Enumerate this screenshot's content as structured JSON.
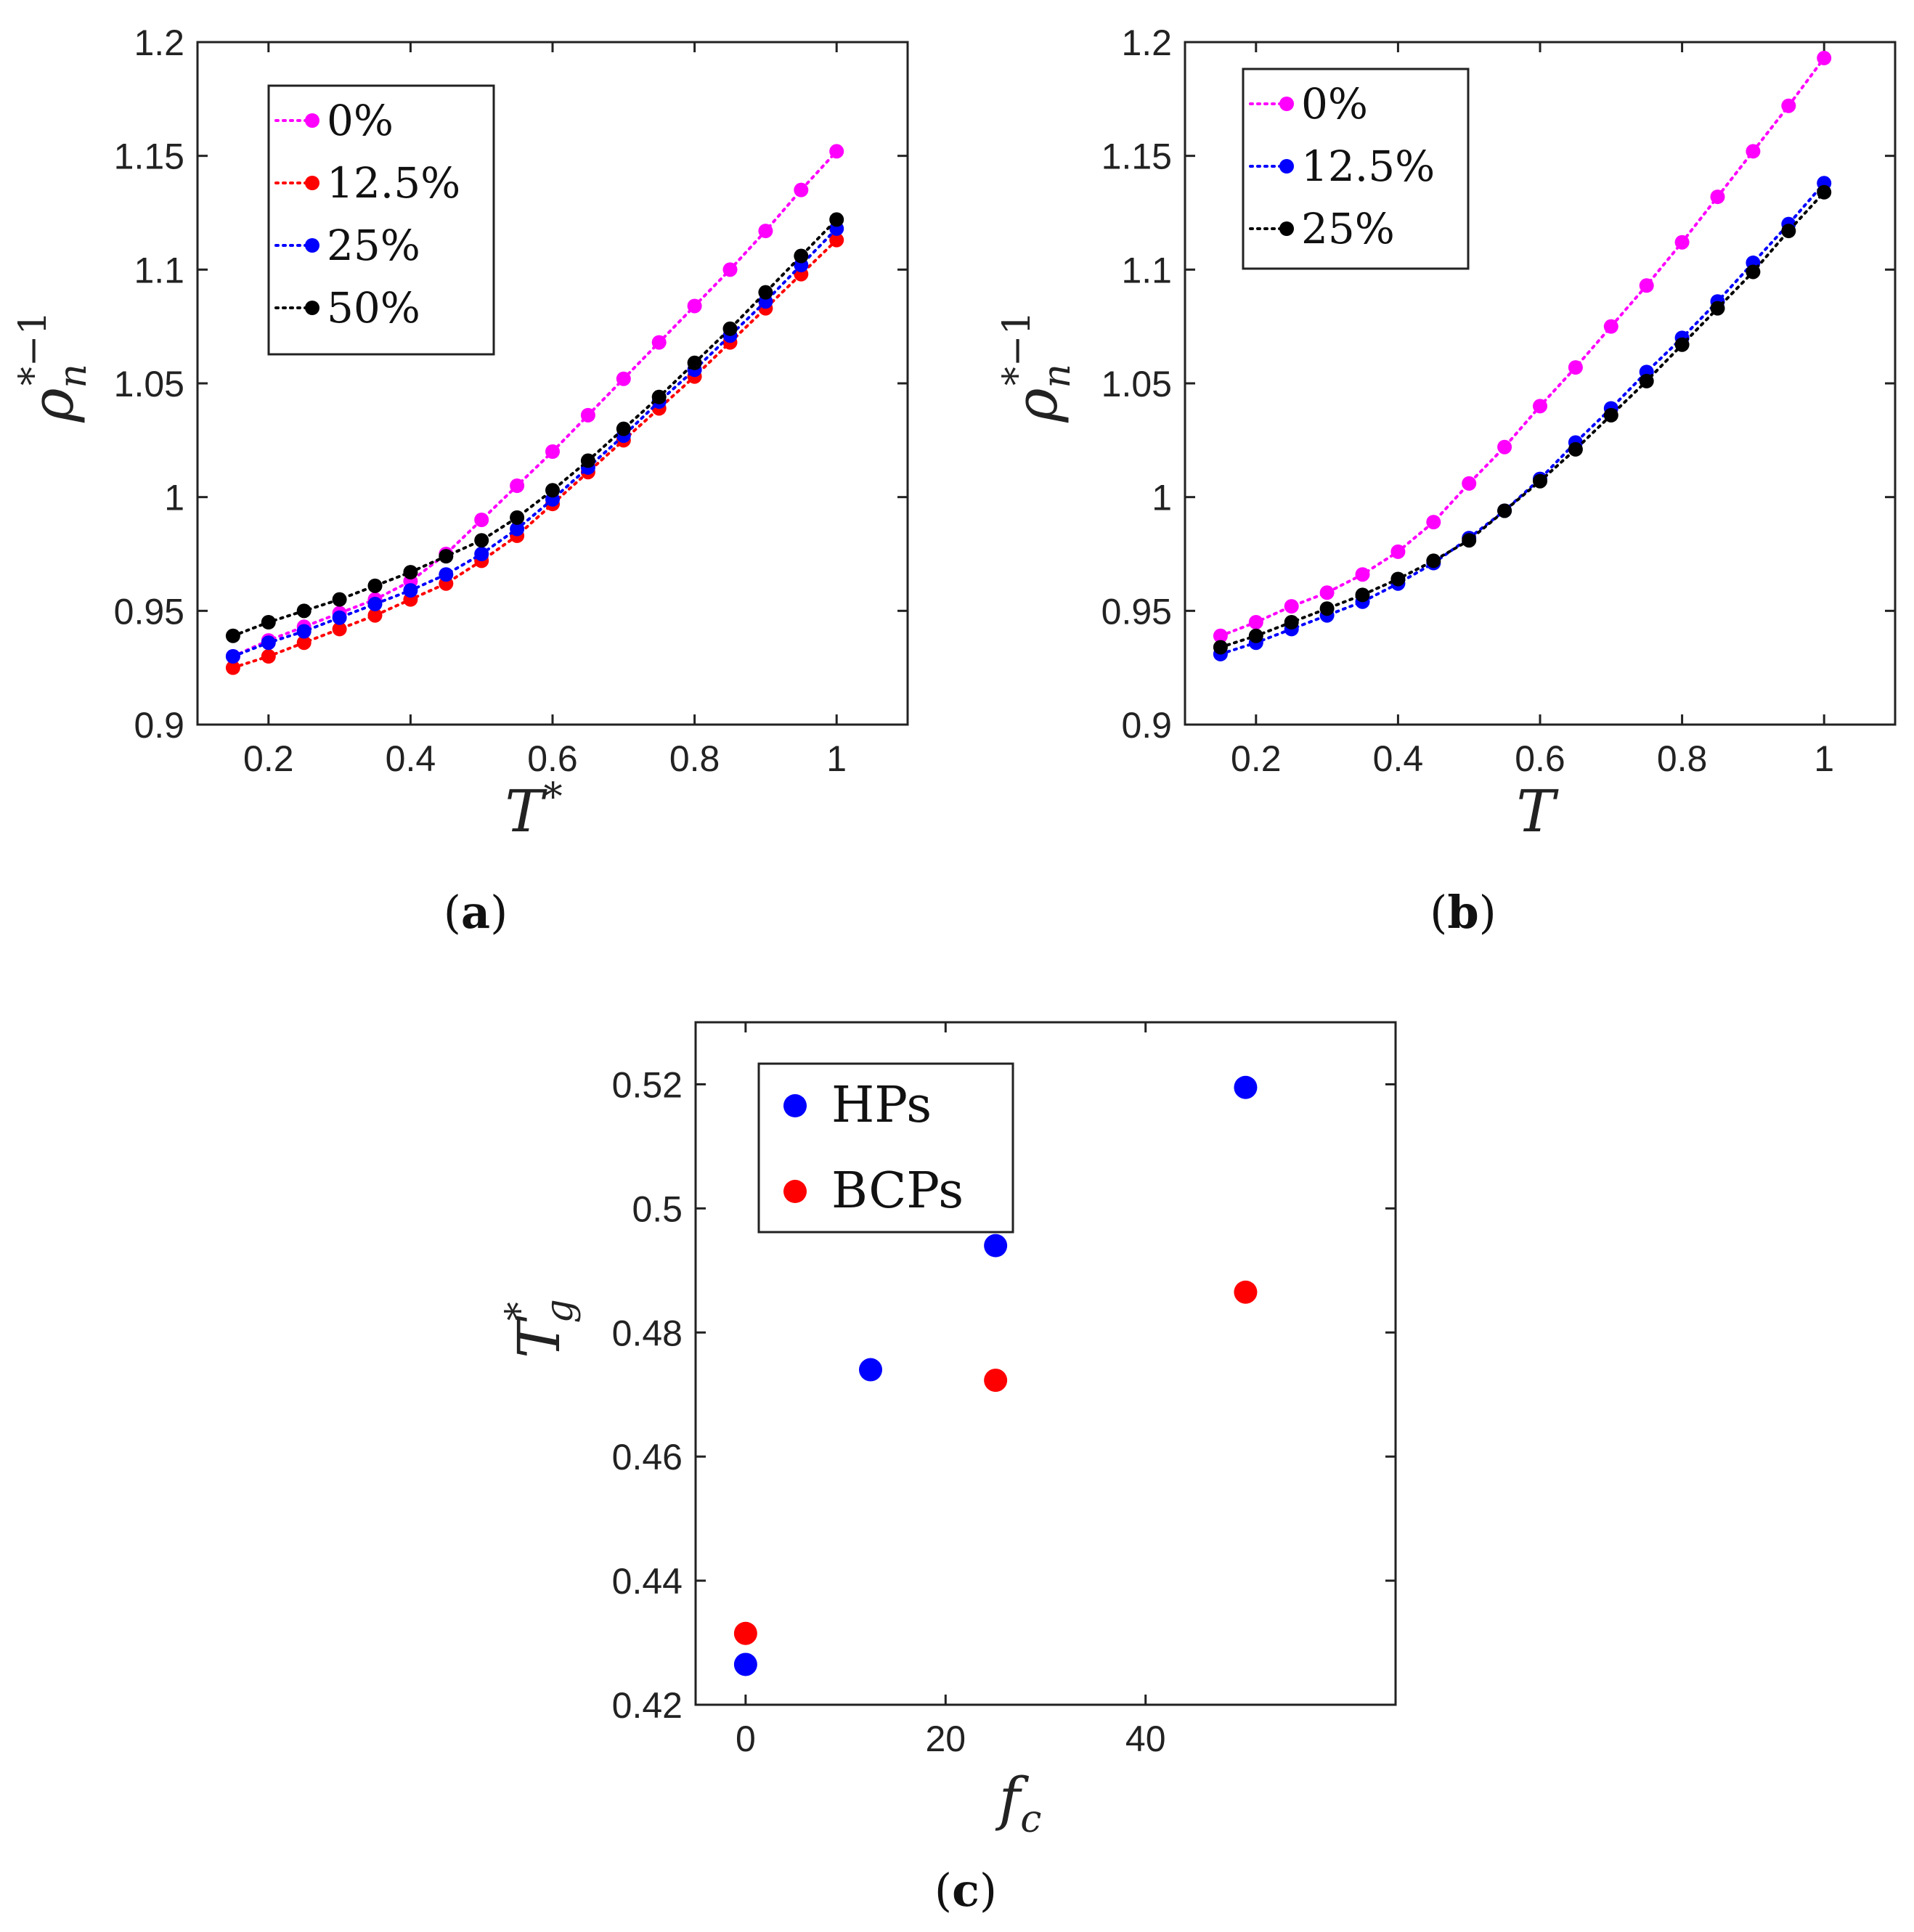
{
  "panels": [
    {
      "id": "a",
      "label": "a",
      "xlabel": "T",
      "xlabel_sup": "*",
      "ylabel": "ρ",
      "ylabel_sub": "n",
      "ylabel_sup": "*−1"
    },
    {
      "id": "b",
      "label": "b",
      "xlabel": "T",
      "xlabel_sup": "",
      "ylabel": "ρ",
      "ylabel_sub": "n",
      "ylabel_sup": "*−1"
    },
    {
      "id": "c",
      "label": "c",
      "xlabel": "f",
      "xlabel_sub": "c",
      "ylabel": "T",
      "ylabel_sub": "g",
      "ylabel_sup": "*"
    }
  ],
  "chart_data": [
    {
      "panel": "a",
      "type": "line",
      "marker": "dot",
      "linestyle": "dotted",
      "title": "",
      "xlabel": "T*",
      "ylabel": "ρn*−1",
      "xlim": [
        0.1,
        1.1
      ],
      "ylim": [
        0.9,
        1.2
      ],
      "xticks": [
        0.2,
        0.4,
        0.6,
        0.8,
        1
      ],
      "xtick_labels": [
        "0.2",
        "0.4",
        "0.6",
        "0.8",
        "1"
      ],
      "yticks": [
        0.9,
        0.95,
        1.0,
        1.05,
        1.1,
        1.15,
        1.2
      ],
      "ytick_labels": [
        "0.9",
        "0.95",
        "1",
        "1.05",
        "1.1",
        "1.15",
        "1.2"
      ],
      "legend_position": "top-left",
      "x": [
        0.15,
        0.2,
        0.25,
        0.3,
        0.35,
        0.4,
        0.45,
        0.5,
        0.55,
        0.6,
        0.65,
        0.7,
        0.75,
        0.8,
        0.85,
        0.9,
        0.95,
        1.0
      ],
      "series": [
        {
          "name": "0%",
          "color": "#ff00ff",
          "values": [
            0.93,
            0.937,
            0.943,
            0.949,
            0.955,
            0.963,
            0.975,
            0.99,
            1.005,
            1.02,
            1.036,
            1.052,
            1.068,
            1.084,
            1.1,
            1.117,
            1.135,
            1.152
          ]
        },
        {
          "name": "12.5%",
          "color": "#ff0000",
          "values": [
            0.925,
            0.93,
            0.936,
            0.942,
            0.948,
            0.955,
            0.962,
            0.972,
            0.983,
            0.997,
            1.011,
            1.025,
            1.039,
            1.053,
            1.068,
            1.083,
            1.098,
            1.113
          ]
        },
        {
          "name": "25%",
          "color": "#0000ff",
          "values": [
            0.93,
            0.936,
            0.941,
            0.947,
            0.953,
            0.959,
            0.966,
            0.975,
            0.986,
            0.999,
            1.013,
            1.027,
            1.042,
            1.056,
            1.071,
            1.086,
            1.102,
            1.118
          ]
        },
        {
          "name": "50%",
          "color": "#000000",
          "values": [
            0.939,
            0.945,
            0.95,
            0.955,
            0.961,
            0.967,
            0.974,
            0.981,
            0.991,
            1.003,
            1.016,
            1.03,
            1.044,
            1.059,
            1.074,
            1.09,
            1.106,
            1.122
          ]
        }
      ]
    },
    {
      "panel": "b",
      "type": "line",
      "marker": "dot",
      "linestyle": "dotted",
      "title": "",
      "xlabel": "T",
      "ylabel": "ρn*−1",
      "xlim": [
        0.1,
        1.1
      ],
      "ylim": [
        0.9,
        1.2
      ],
      "xticks": [
        0.2,
        0.4,
        0.6,
        0.8,
        1
      ],
      "xtick_labels": [
        "0.2",
        "0.4",
        "0.6",
        "0.8",
        "1"
      ],
      "yticks": [
        0.9,
        0.95,
        1.0,
        1.05,
        1.1,
        1.15,
        1.2
      ],
      "ytick_labels": [
        "0.9",
        "0.95",
        "1",
        "1.05",
        "1.1",
        "1.15",
        "1.2"
      ],
      "legend_position": "top-left",
      "x": [
        0.15,
        0.2,
        0.25,
        0.3,
        0.35,
        0.4,
        0.45,
        0.5,
        0.55,
        0.6,
        0.65,
        0.7,
        0.75,
        0.8,
        0.85,
        0.9,
        0.95,
        1.0
      ],
      "series": [
        {
          "name": "0%",
          "color": "#ff00ff",
          "values": [
            0.939,
            0.945,
            0.952,
            0.958,
            0.966,
            0.976,
            0.989,
            1.006,
            1.022,
            1.04,
            1.057,
            1.075,
            1.093,
            1.112,
            1.132,
            1.152,
            1.172,
            1.193
          ]
        },
        {
          "name": "12.5%",
          "color": "#0000ff",
          "values": [
            0.931,
            0.936,
            0.942,
            0.948,
            0.954,
            0.962,
            0.971,
            0.982,
            0.994,
            1.008,
            1.024,
            1.039,
            1.055,
            1.07,
            1.086,
            1.103,
            1.12,
            1.138
          ]
        },
        {
          "name": "25%",
          "color": "#000000",
          "values": [
            0.934,
            0.939,
            0.945,
            0.951,
            0.957,
            0.964,
            0.972,
            0.981,
            0.994,
            1.007,
            1.021,
            1.036,
            1.051,
            1.067,
            1.083,
            1.099,
            1.117,
            1.134
          ]
        }
      ]
    },
    {
      "panel": "c",
      "type": "scatter",
      "title": "",
      "xlabel": "fc",
      "ylabel": "Tg*",
      "xlim": [
        -5,
        65
      ],
      "ylim": [
        0.42,
        0.53
      ],
      "xticks": [
        0,
        20,
        40
      ],
      "xtick_labels": [
        "0",
        "20",
        "40"
      ],
      "yticks": [
        0.42,
        0.44,
        0.46,
        0.48,
        0.5,
        0.52
      ],
      "ytick_labels": [
        "0.42",
        "0.44",
        "0.46",
        "0.48",
        "0.5",
        "0.52"
      ],
      "legend_position": "top-left",
      "series": [
        {
          "name": "HPs",
          "color": "#0000ff",
          "x": [
            0,
            12.5,
            25,
            50
          ],
          "values": [
            0.4265,
            0.474,
            0.494,
            0.5195
          ]
        },
        {
          "name": "BCPs",
          "color": "#ff0000",
          "x": [
            0,
            25,
            50
          ],
          "values": [
            0.4315,
            0.4723,
            0.4865
          ]
        }
      ]
    }
  ]
}
